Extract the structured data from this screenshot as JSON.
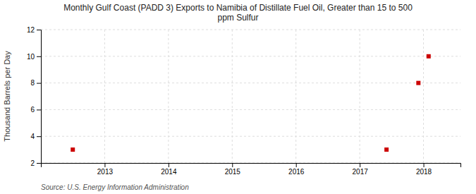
{
  "chart_data": {
    "type": "scatter",
    "title": "Monthly Gulf Coast (PADD 3) Exports to Namibia of Distillate Fuel Oil, Greater than 15 to 500\nppm Sulfur",
    "y_label": "Thousand Barrels per Day",
    "source": "Source: U.S. Energy Information Administration",
    "x": [
      2012.5,
      2017.42,
      2017.92,
      2018.08
    ],
    "values": [
      3.0,
      3.0,
      8.0,
      10.0
    ],
    "color": "#cc0000",
    "marker": "square",
    "xlim": [
      2012.0,
      2018.58
    ],
    "ylim": [
      2,
      12
    ],
    "xticks": [
      2013,
      2014,
      2015,
      2016,
      2017,
      2018
    ],
    "yticks": [
      2,
      4,
      6,
      8,
      10,
      12
    ],
    "grid": true
  }
}
